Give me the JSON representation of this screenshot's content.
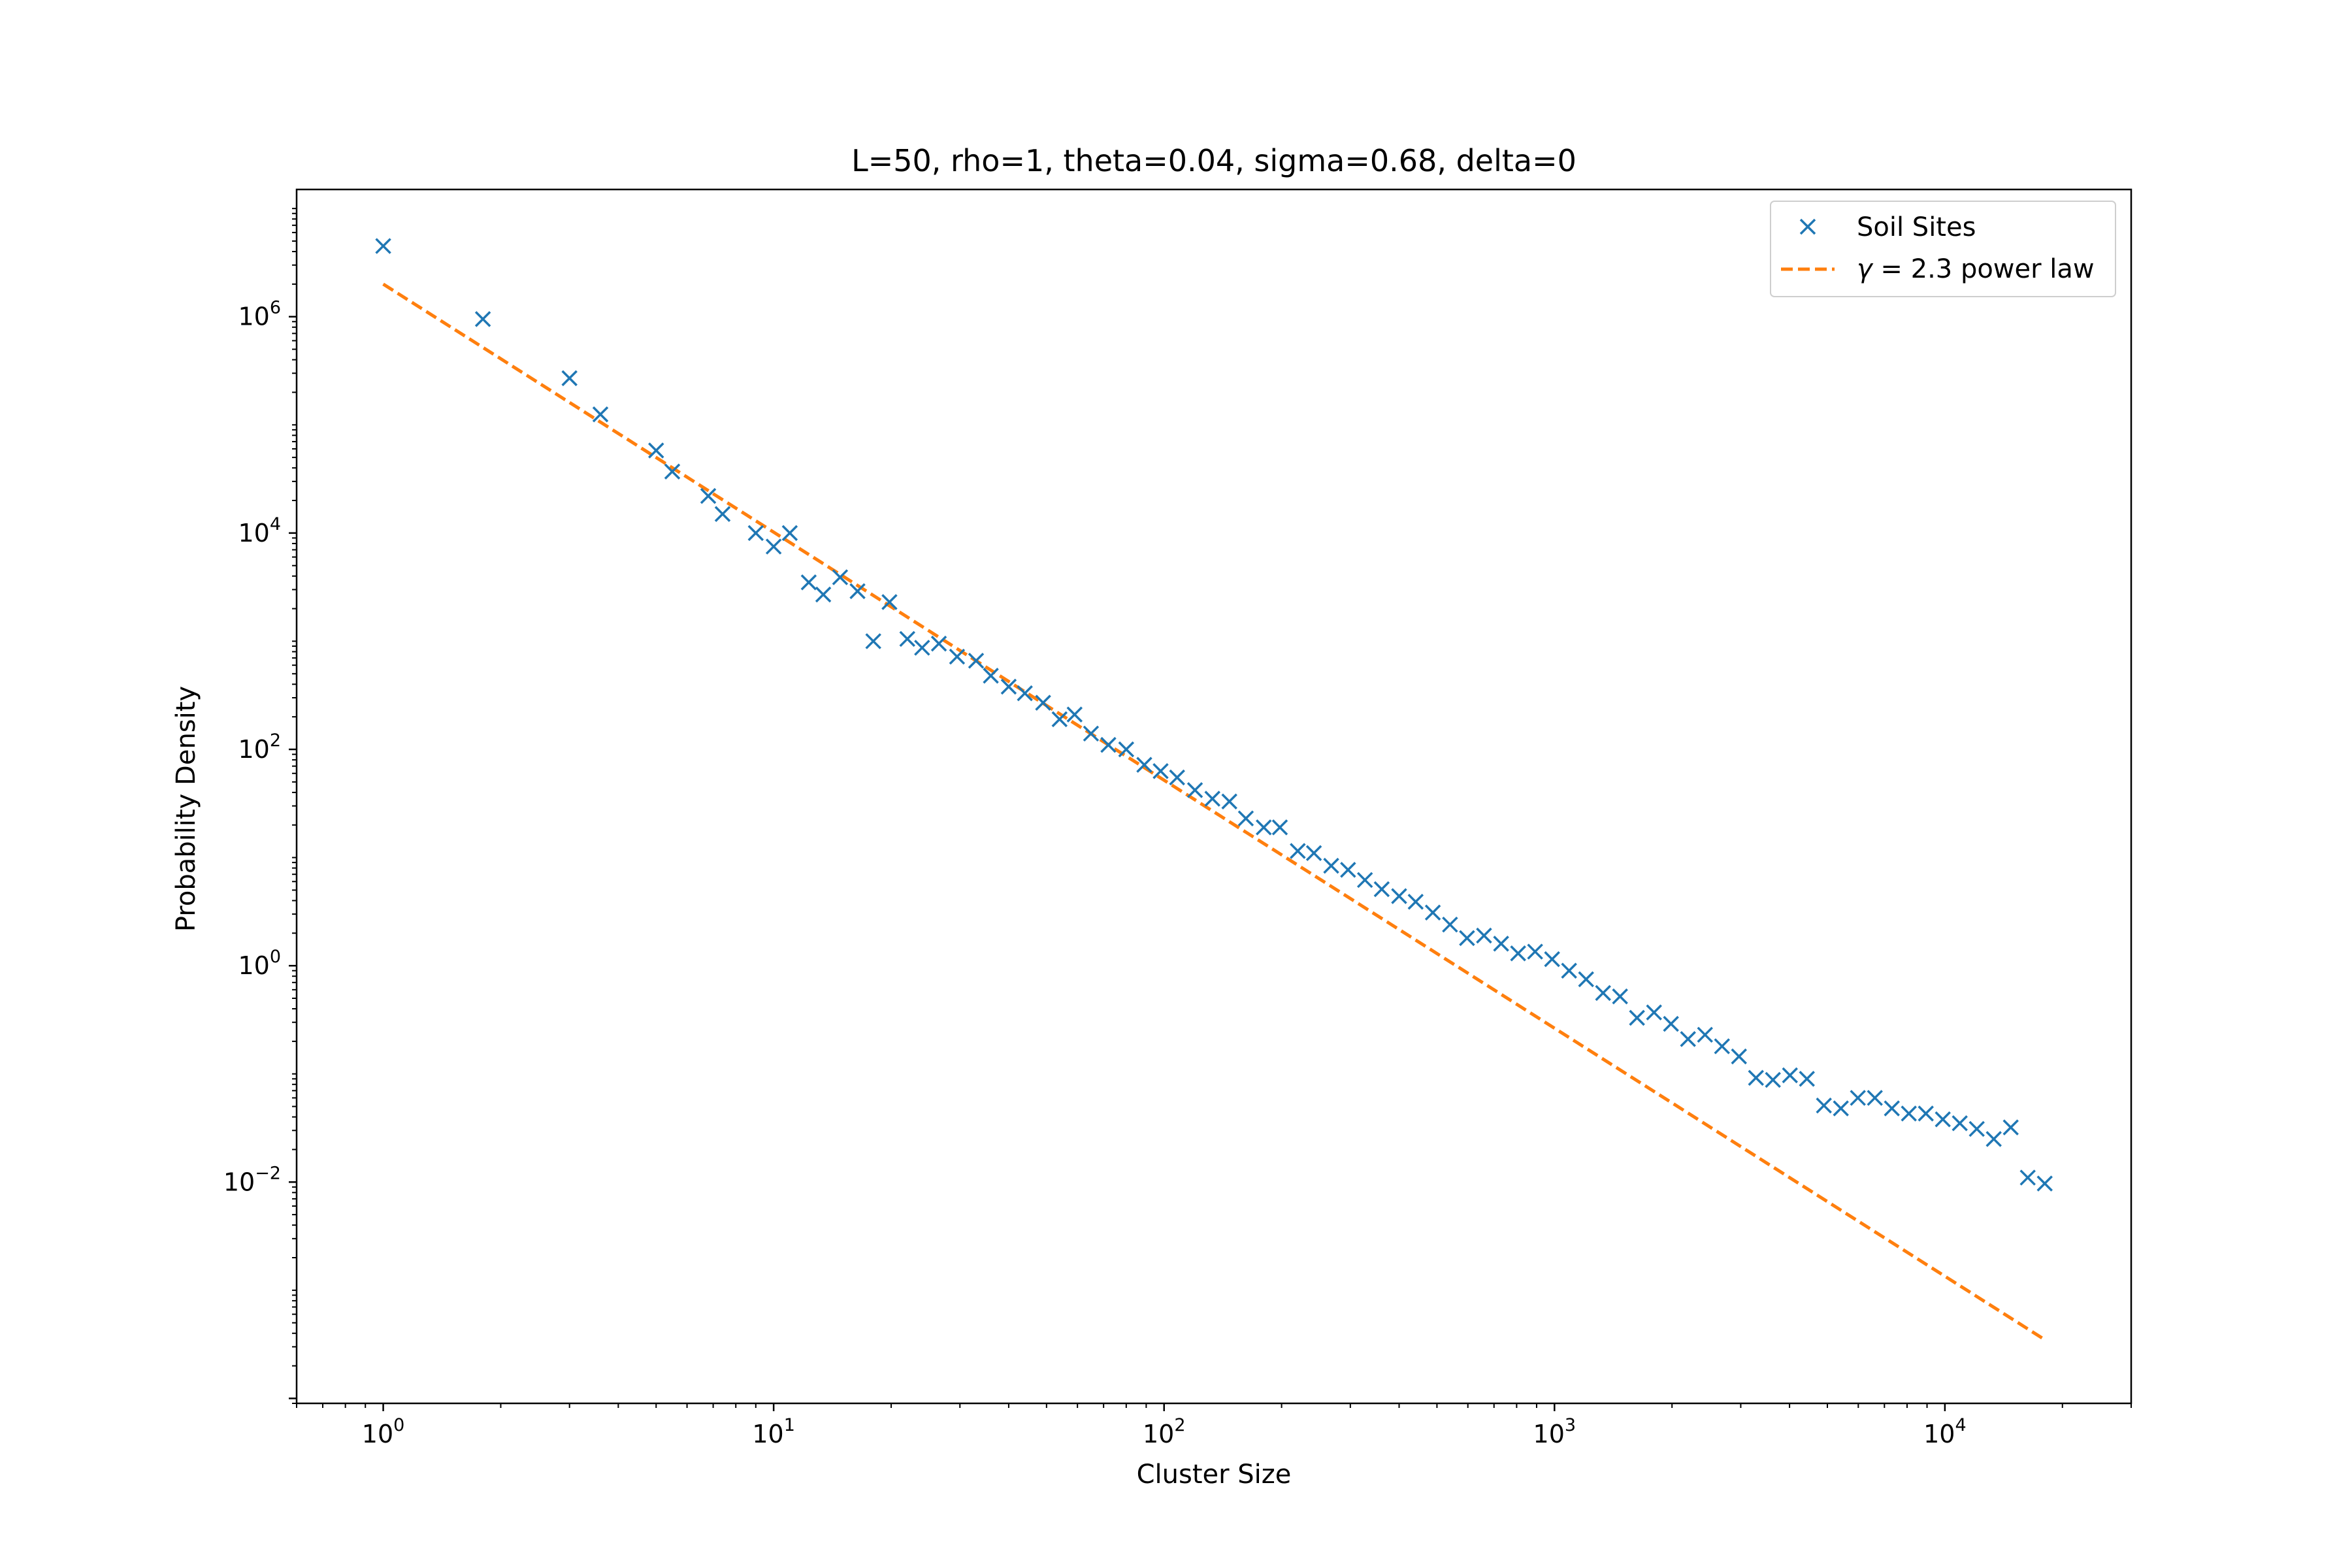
{
  "chart_data": {
    "type": "scatter",
    "title": "L=50, rho=1, theta=0.04, sigma=0.68, delta=0",
    "xlabel": "Cluster Size",
    "ylabel": "Probability Density",
    "x_scale": "log",
    "y_scale": "log",
    "xlim": [
      0.6,
      30000
    ],
    "ylim": [
      9e-05,
      15000000
    ],
    "x_ticks": [
      {
        "value": 1,
        "base": "10",
        "exp": "0"
      },
      {
        "value": 10,
        "base": "10",
        "exp": "1"
      },
      {
        "value": 100,
        "base": "10",
        "exp": "2"
      },
      {
        "value": 1000,
        "base": "10",
        "exp": "3"
      },
      {
        "value": 10000,
        "base": "10",
        "exp": "4"
      }
    ],
    "y_ticks": [
      {
        "value": 0.01,
        "base": "10",
        "exp": "−2"
      },
      {
        "value": 1,
        "base": "10",
        "exp": "0"
      },
      {
        "value": 100,
        "base": "10",
        "exp": "2"
      },
      {
        "value": 10000,
        "base": "10",
        "exp": "4"
      },
      {
        "value": 1000000,
        "base": "10",
        "exp": "6"
      }
    ],
    "grid": false,
    "legend_position": "upper right",
    "series": [
      {
        "name": "Soil Sites",
        "kind": "scatter",
        "marker": "x",
        "color": "#1f77b4",
        "points": [
          [
            1,
            4500000
          ],
          [
            1.8,
            950000
          ],
          [
            3,
            270000
          ],
          [
            3.6,
            125000
          ],
          [
            5,
            58000
          ],
          [
            5.5,
            37000
          ],
          [
            6.8,
            22000
          ],
          [
            7.4,
            15000
          ],
          [
            9,
            10000
          ],
          [
            10,
            7500
          ],
          [
            11,
            10000
          ],
          [
            12.3,
            3500
          ],
          [
            13.4,
            2700
          ],
          [
            14.8,
            3900
          ],
          [
            16.4,
            2900
          ],
          [
            18,
            1000
          ],
          [
            19.8,
            2300
          ],
          [
            22,
            1050
          ],
          [
            24,
            870
          ],
          [
            26.5,
            950
          ],
          [
            29.5,
            720
          ],
          [
            33,
            660
          ],
          [
            36,
            480
          ],
          [
            40,
            380
          ],
          [
            44,
            330
          ],
          [
            49,
            270
          ],
          [
            54,
            190
          ],
          [
            59,
            210
          ],
          [
            65,
            140
          ],
          [
            72,
            110
          ],
          [
            80,
            100
          ],
          [
            89,
            72
          ],
          [
            98,
            63
          ],
          [
            108,
            55
          ],
          [
            120,
            42
          ],
          [
            133,
            35
          ],
          [
            147,
            33
          ],
          [
            162,
            23
          ],
          [
            180,
            19
          ],
          [
            198,
            19
          ],
          [
            220,
            11.5
          ],
          [
            242,
            11
          ],
          [
            268,
            8.4
          ],
          [
            296,
            7.7
          ],
          [
            327,
            6.2
          ],
          [
            361,
            5.1
          ],
          [
            400,
            4.4
          ],
          [
            441,
            3.9
          ],
          [
            488,
            3.1
          ],
          [
            540,
            2.4
          ],
          [
            597,
            1.8
          ],
          [
            660,
            1.9
          ],
          [
            730,
            1.6
          ],
          [
            807,
            1.3
          ],
          [
            892,
            1.35
          ],
          [
            986,
            1.15
          ],
          [
            1090,
            0.9
          ],
          [
            1205,
            0.75
          ],
          [
            1332,
            0.56
          ],
          [
            1472,
            0.52
          ],
          [
            1627,
            0.33
          ],
          [
            1799,
            0.37
          ],
          [
            1988,
            0.29
          ],
          [
            2198,
            0.21
          ],
          [
            2430,
            0.23
          ],
          [
            2686,
            0.18
          ],
          [
            2969,
            0.145
          ],
          [
            3282,
            0.092
          ],
          [
            3627,
            0.088
          ],
          [
            4010,
            0.097
          ],
          [
            4432,
            0.09
          ],
          [
            4899,
            0.051
          ],
          [
            5415,
            0.048
          ],
          [
            5986,
            0.06
          ],
          [
            6617,
            0.06
          ],
          [
            7314,
            0.048
          ],
          [
            8085,
            0.043
          ],
          [
            8937,
            0.043
          ],
          [
            9878,
            0.038
          ],
          [
            10919,
            0.035
          ],
          [
            12070,
            0.031
          ],
          [
            13342,
            0.025
          ],
          [
            14748,
            0.032
          ],
          [
            16302,
            0.011
          ],
          [
            18020,
            0.0097
          ]
        ]
      },
      {
        "name": "γ = 2.3 power law",
        "name_prefix": "γ",
        "name_rest": " = 2.3 power law",
        "kind": "line",
        "style": "dashed",
        "color": "#ff7f0e",
        "exponent": -2.3,
        "points": [
          [
            1,
            2000000
          ],
          [
            18000,
            0.00035
          ]
        ]
      }
    ]
  }
}
